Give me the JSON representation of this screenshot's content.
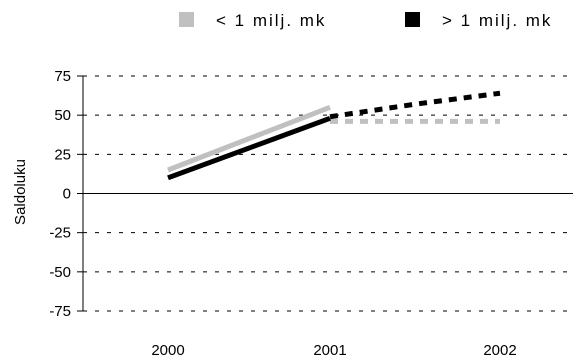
{
  "chart_data": {
    "type": "line",
    "ylabel": "Saldoluku",
    "categories": [
      "2000",
      "2001",
      "2002"
    ],
    "ylim": [
      -75,
      75
    ],
    "yticks": [
      "75",
      "50",
      "25",
      "0",
      "-25",
      "-50",
      "-75"
    ],
    "grid": "dashed horizontal",
    "legend_position": "top",
    "series": [
      {
        "name": "< 1 milj. mk",
        "color": "#c0c0c0",
        "values": [
          15,
          55,
          null
        ],
        "forecast": [
          46,
          46,
          46
        ],
        "forecast_x": [
          2001,
          2001.5,
          2002
        ]
      },
      {
        "name": "> 1 milj. mk",
        "color": "#000000",
        "values": [
          10,
          48,
          null
        ],
        "forecast": [
          49,
          57,
          64
        ],
        "forecast_x": [
          2001,
          2001.5,
          2002
        ]
      }
    ]
  }
}
